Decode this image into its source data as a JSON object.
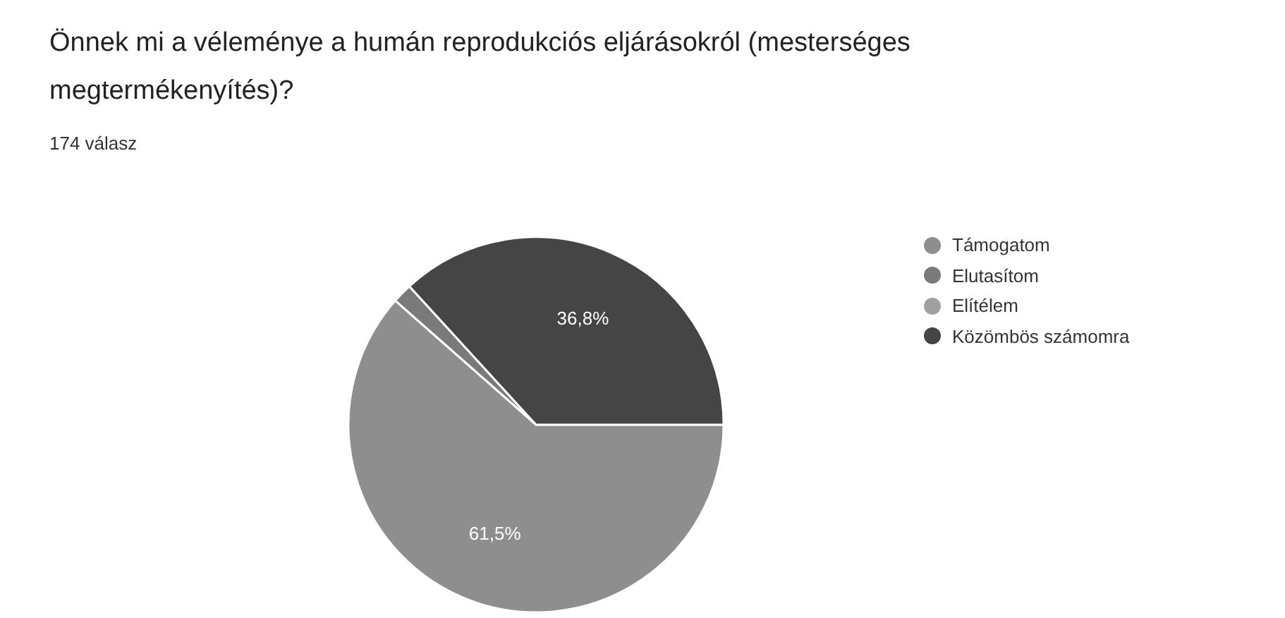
{
  "chart_data": {
    "type": "pie",
    "title": "Önnek mi a véleménye a humán reprodukciós eljárásokról (mesterséges megtermékenyítés)?",
    "subtitle": "174 válasz",
    "categories": [
      "Támogatom",
      "Elutasítom",
      "Elítélem",
      "Közömbös számomra"
    ],
    "values": [
      61.5,
      1.7,
      0,
      36.8
    ],
    "colors": [
      "#8e8e8e",
      "#7a7a7a",
      "#a0a0a0",
      "#454545"
    ],
    "value_labels": [
      "61,5%",
      null,
      null,
      "36,8%"
    ],
    "legend": "right"
  }
}
